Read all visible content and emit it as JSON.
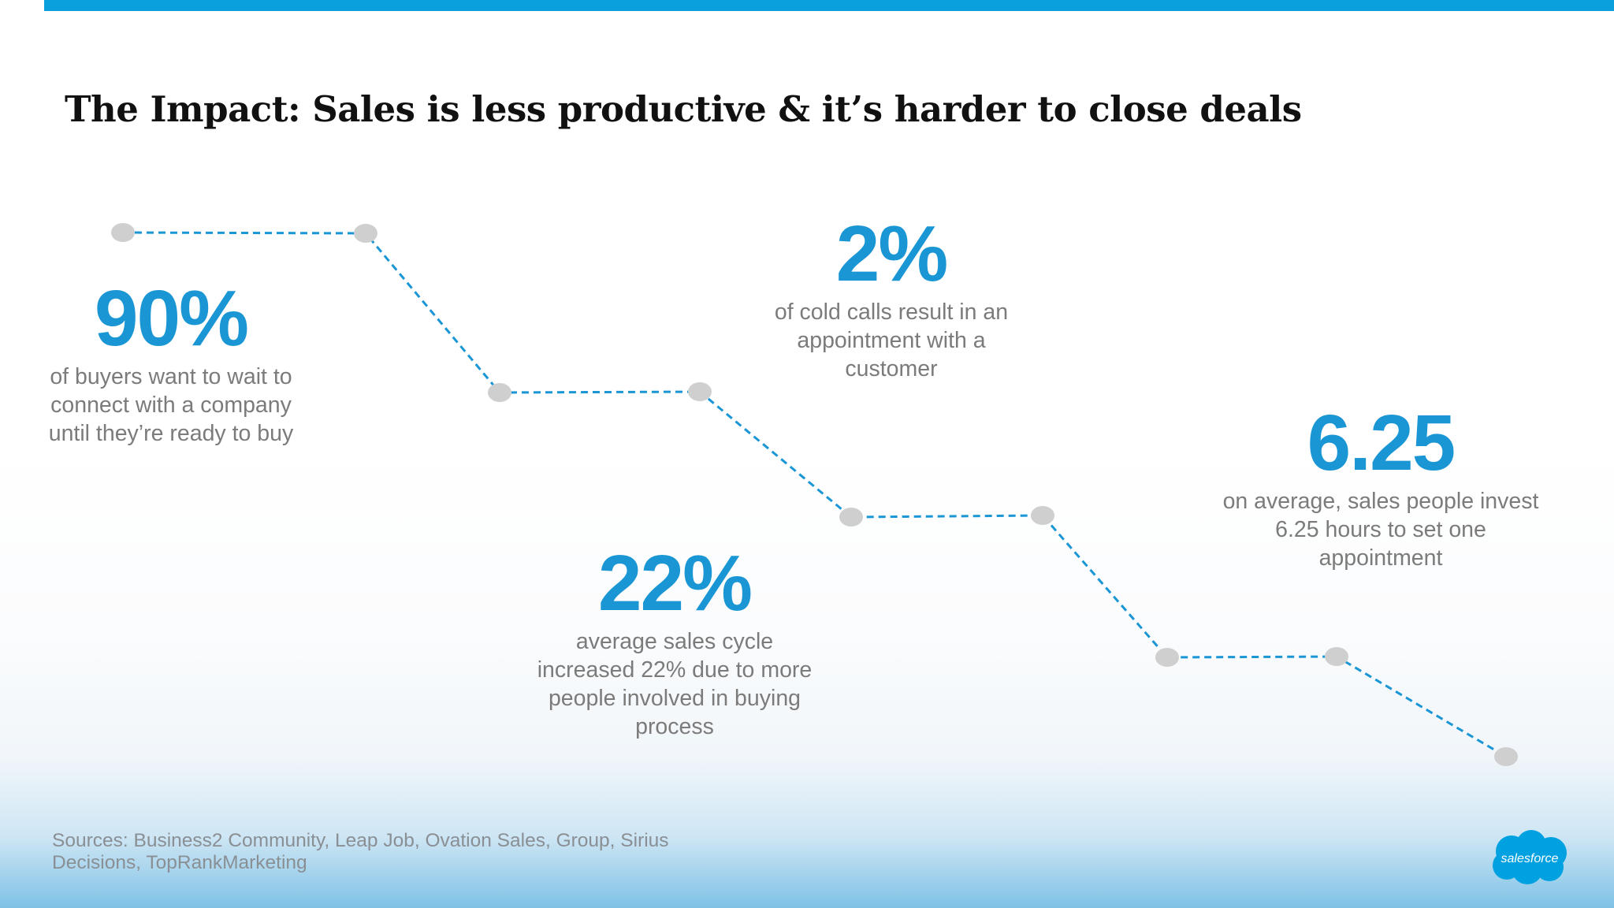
{
  "slide": {
    "title": "The Impact: Sales is less productive & it’s harder to close deals",
    "accent_color": "#0aa0dd",
    "stat_color": "#1a96d5",
    "dot_color": "#cfcfcf",
    "stats": [
      {
        "value": "90%",
        "description": "of buyers want to wait to connect with a company until they’re ready to buy"
      },
      {
        "value": "2%",
        "description": "of cold calls result in an appointment with a customer"
      },
      {
        "value": "22%",
        "description": "average sales cycle increased 22% due to more people involved in buying process"
      },
      {
        "value": "6.25",
        "description": "on average, sales people invest 6.25 hours to set one appointment"
      }
    ],
    "sources": "Sources: Business2 Community, Leap Job, Ovation Sales, Group, Sirius Decisions, TopRankMarketing",
    "logo_text": "salesforce"
  }
}
